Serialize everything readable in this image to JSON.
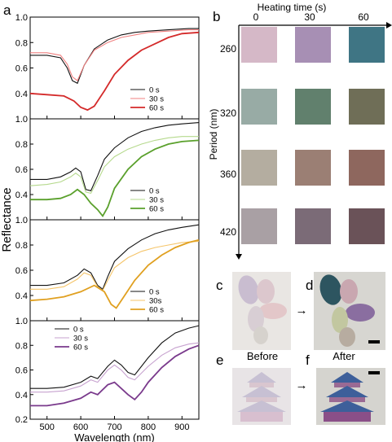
{
  "figure": {
    "panel_letters": {
      "a": "a",
      "b": "b",
      "c": "c",
      "d": "d",
      "e": "e",
      "f": "f"
    }
  },
  "colors": {
    "black": "#111111",
    "light_red": "#f08080",
    "red": "#d42a2a",
    "light_green": "#b5d98c",
    "green": "#5aa02c",
    "light_orange": "#f5c56a",
    "orange": "#e0a020",
    "light_purple": "#c7a2cf",
    "purple": "#7a3a8c"
  },
  "chart_data": [
    {
      "type": "line",
      "panel": "a1",
      "xlim": [
        450,
        950
      ],
      "ylim": [
        0.2,
        1.0
      ],
      "yticks": [
        "0.2",
        "0.4",
        "0.6",
        "0.8",
        "1.0"
      ],
      "legend": "lower-right",
      "series": [
        {
          "name": "0 s",
          "color": "#111111",
          "x": [
            450,
            500,
            540,
            560,
            575,
            590,
            610,
            640,
            680,
            720,
            760,
            800,
            860,
            920,
            950
          ],
          "y": [
            0.7,
            0.7,
            0.68,
            0.6,
            0.5,
            0.48,
            0.62,
            0.75,
            0.82,
            0.86,
            0.88,
            0.89,
            0.9,
            0.91,
            0.91
          ]
        },
        {
          "name": "30 s",
          "color": "#f08080",
          "x": [
            450,
            500,
            540,
            560,
            575,
            590,
            610,
            640,
            680,
            720,
            760,
            800,
            860,
            920,
            950
          ],
          "y": [
            0.72,
            0.72,
            0.7,
            0.63,
            0.53,
            0.5,
            0.62,
            0.74,
            0.8,
            0.84,
            0.86,
            0.88,
            0.89,
            0.9,
            0.9
          ]
        },
        {
          "name": "60 s",
          "color": "#d42a2a",
          "x": [
            450,
            500,
            550,
            580,
            600,
            620,
            640,
            670,
            700,
            740,
            780,
            820,
            860,
            900,
            950
          ],
          "y": [
            0.4,
            0.39,
            0.38,
            0.34,
            0.29,
            0.27,
            0.3,
            0.42,
            0.55,
            0.66,
            0.74,
            0.79,
            0.84,
            0.87,
            0.88
          ]
        }
      ]
    },
    {
      "type": "line",
      "panel": "a2",
      "xlim": [
        450,
        950
      ],
      "ylim": [
        0.2,
        1.0
      ],
      "yticks": [
        "0.2",
        "0.4",
        "0.6",
        "0.8",
        "1.0"
      ],
      "legend": "lower-right",
      "series": [
        {
          "name": "0 s",
          "color": "#111111",
          "x": [
            450,
            500,
            540,
            570,
            585,
            600,
            615,
            630,
            650,
            670,
            700,
            740,
            780,
            820,
            860,
            900,
            950
          ],
          "y": [
            0.52,
            0.52,
            0.54,
            0.58,
            0.61,
            0.58,
            0.44,
            0.43,
            0.55,
            0.68,
            0.77,
            0.85,
            0.9,
            0.93,
            0.95,
            0.96,
            0.97
          ]
        },
        {
          "name": "30 s",
          "color": "#b5d98c",
          "x": [
            450,
            500,
            540,
            570,
            585,
            600,
            615,
            630,
            650,
            670,
            700,
            740,
            780,
            820,
            860,
            900,
            950
          ],
          "y": [
            0.47,
            0.48,
            0.5,
            0.54,
            0.57,
            0.54,
            0.42,
            0.41,
            0.51,
            0.62,
            0.7,
            0.76,
            0.8,
            0.83,
            0.85,
            0.86,
            0.86
          ]
        },
        {
          "name": "60 s",
          "color": "#5aa02c",
          "x": [
            450,
            500,
            540,
            570,
            590,
            610,
            630,
            650,
            665,
            680,
            700,
            740,
            780,
            820,
            860,
            900,
            950
          ],
          "y": [
            0.36,
            0.36,
            0.37,
            0.4,
            0.44,
            0.4,
            0.33,
            0.28,
            0.23,
            0.3,
            0.45,
            0.6,
            0.7,
            0.76,
            0.8,
            0.82,
            0.83
          ]
        }
      ]
    },
    {
      "type": "line",
      "panel": "a3",
      "xlim": [
        450,
        950
      ],
      "ylim": [
        0.2,
        1.0
      ],
      "yticks": [
        "0.2",
        "0.4",
        "0.6",
        "0.8",
        "1.0"
      ],
      "legend": "lower-right",
      "series": [
        {
          "name": "0 s",
          "color": "#111111",
          "x": [
            450,
            500,
            550,
            590,
            610,
            630,
            650,
            665,
            680,
            700,
            740,
            780,
            820,
            860,
            900,
            950
          ],
          "y": [
            0.48,
            0.48,
            0.5,
            0.56,
            0.61,
            0.58,
            0.48,
            0.45,
            0.55,
            0.67,
            0.77,
            0.84,
            0.89,
            0.92,
            0.94,
            0.96
          ]
        },
        {
          "name": "30s",
          "color": "#f5c56a",
          "x": [
            450,
            500,
            550,
            590,
            610,
            630,
            650,
            665,
            680,
            700,
            740,
            780,
            820,
            860,
            900,
            950
          ],
          "y": [
            0.45,
            0.45,
            0.47,
            0.53,
            0.58,
            0.56,
            0.47,
            0.44,
            0.52,
            0.62,
            0.7,
            0.75,
            0.78,
            0.8,
            0.82,
            0.83
          ]
        },
        {
          "name": "60 s",
          "color": "#e0a020",
          "x": [
            450,
            500,
            550,
            600,
            640,
            670,
            690,
            705,
            720,
            760,
            800,
            840,
            880,
            920,
            950
          ],
          "y": [
            0.36,
            0.37,
            0.39,
            0.43,
            0.48,
            0.43,
            0.33,
            0.3,
            0.36,
            0.52,
            0.64,
            0.72,
            0.78,
            0.82,
            0.84
          ]
        }
      ]
    },
    {
      "type": "line",
      "panel": "a4",
      "xlim": [
        450,
        950
      ],
      "ylim": [
        0.2,
        1.0
      ],
      "yticks": [
        "0.2",
        "0.4",
        "0.6",
        "0.8",
        "1.0"
      ],
      "xticks": [
        "500",
        "600",
        "700",
        "800",
        "900"
      ],
      "xlabel": "Wavelength (nm)",
      "legend": "upper-left",
      "series": [
        {
          "name": "0 s",
          "color": "#111111",
          "x": [
            450,
            500,
            550,
            600,
            630,
            650,
            680,
            700,
            720,
            740,
            760,
            800,
            840,
            880,
            920,
            950
          ],
          "y": [
            0.45,
            0.45,
            0.46,
            0.5,
            0.55,
            0.53,
            0.63,
            0.68,
            0.64,
            0.58,
            0.56,
            0.7,
            0.82,
            0.9,
            0.94,
            0.96
          ]
        },
        {
          "name": "30 s",
          "color": "#c7a2cf",
          "x": [
            450,
            500,
            550,
            600,
            630,
            650,
            680,
            700,
            720,
            740,
            760,
            800,
            840,
            880,
            920,
            950
          ],
          "y": [
            0.42,
            0.42,
            0.43,
            0.47,
            0.52,
            0.5,
            0.6,
            0.64,
            0.6,
            0.54,
            0.52,
            0.63,
            0.72,
            0.78,
            0.81,
            0.82
          ]
        },
        {
          "name": "60 s",
          "color": "#7a3a8c",
          "x": [
            450,
            500,
            550,
            600,
            630,
            650,
            680,
            700,
            720,
            740,
            760,
            780,
            800,
            840,
            880,
            920,
            950
          ],
          "y": [
            0.31,
            0.31,
            0.33,
            0.37,
            0.42,
            0.4,
            0.48,
            0.5,
            0.45,
            0.4,
            0.36,
            0.42,
            0.5,
            0.62,
            0.71,
            0.77,
            0.8
          ]
        }
      ]
    }
  ],
  "shared_axis": {
    "ylabel": "Reflectance"
  },
  "grid": {
    "title": "Heating time (s)",
    "col_labels": [
      "0",
      "30",
      "60"
    ],
    "row_axis_label": "Period (nm)",
    "row_labels": [
      "260",
      "320",
      "360",
      "420"
    ],
    "swatch_colors": [
      [
        "#d5b8c7",
        "#a78fb4",
        "#3f7584"
      ],
      [
        "#98aba5",
        "#61806d",
        "#6f6e57"
      ],
      [
        "#b4ada0",
        "#9b7f74",
        "#8e675e"
      ],
      [
        "#a9a0a4",
        "#7b6b77",
        "#6a5258"
      ]
    ]
  },
  "photos": {
    "before_label": "Before",
    "after_label": "After",
    "arrow": "→"
  }
}
